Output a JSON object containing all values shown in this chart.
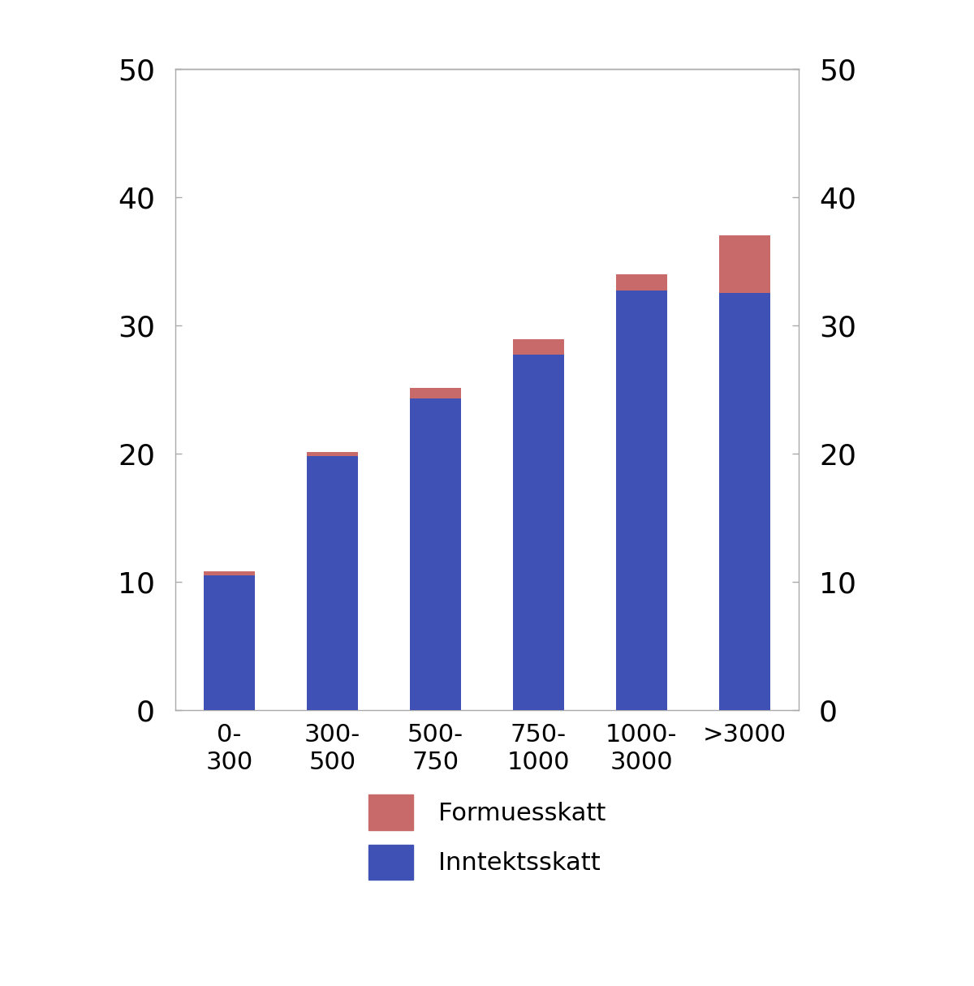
{
  "categories": [
    "0-\n300",
    "300-\n500",
    "500-\n750",
    "750-\n1000",
    "1000-\n3000",
    ">3000"
  ],
  "inntektsskatt": [
    10.5,
    19.8,
    24.3,
    27.7,
    32.7,
    32.5
  ],
  "formuesskatt": [
    0.3,
    0.3,
    0.8,
    1.2,
    1.3,
    4.5
  ],
  "color_inntekt": "#3F51B5",
  "color_formue": "#C96A6A",
  "ylim": [
    0,
    50
  ],
  "yticks": [
    0,
    10,
    20,
    30,
    40,
    50
  ],
  "background_color": "#ffffff",
  "legend_fontsize": 22,
  "tick_fontsize": 26,
  "xtick_fontsize": 22,
  "bar_width": 0.5,
  "spine_color": "#aaaaaa"
}
